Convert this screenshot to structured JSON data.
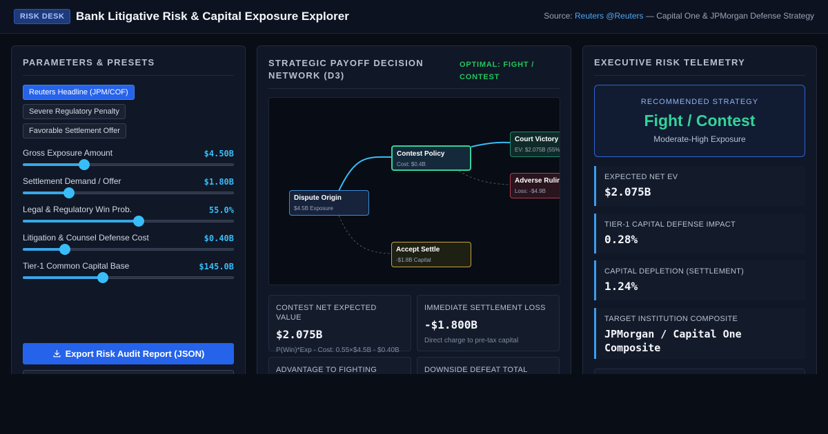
{
  "header": {
    "badge": "RISK DESK",
    "title": "Bank Litigative Risk & Capital Exposure Explorer",
    "source_prefix": "Source: ",
    "source_link": "Reuters @Reuters",
    "source_suffix": " — Capital One & JPMorgan Defense Strategy"
  },
  "left": {
    "title": "PARAMETERS & PRESETS",
    "presets": [
      {
        "label": "Reuters Headline (JPM/COF)",
        "active": true
      },
      {
        "label": "Severe Regulatory Penalty",
        "active": false
      },
      {
        "label": "Favorable Settlement Offer",
        "active": false
      }
    ],
    "params": [
      {
        "label": "Gross Exposure Amount",
        "value": "$4.50B",
        "level": 0.29
      },
      {
        "label": "Settlement Demand / Offer",
        "value": "$1.80B",
        "level": 0.22
      },
      {
        "label": "Legal & Regulatory Win Prob.",
        "value": "55.0%",
        "level": 0.55
      },
      {
        "label": "Litigation & Counsel Defense Cost",
        "value": "$0.40B",
        "level": 0.2
      },
      {
        "label": "Tier-1 Common Capital Base",
        "value": "$145.0B",
        "level": 0.38
      }
    ],
    "export_label": "Export Risk Audit Report (JSON)"
  },
  "middle": {
    "title_line1": "STRATEGIC PAYOFF DECISION",
    "title_line2": "NETWORK (D3)",
    "optimal_line1": "OPTIMAL: FIGHT /",
    "optimal_line2": "CONTEST",
    "nodes": {
      "origin": {
        "title": "Dispute Origin",
        "sub": "$4.5B Exposure"
      },
      "contest": {
        "title": "Contest Policy",
        "sub": "Cost: $0.4B"
      },
      "victory": {
        "title": "Court Victory",
        "sub": "EV: $2.075B (55%"
      },
      "adverse": {
        "title": "Adverse Rulin",
        "sub": "Loss: -$4.9B"
      },
      "settle": {
        "title": "Accept Settle",
        "sub": "-$1.8B Capital"
      }
    },
    "cards": [
      {
        "label": "CONTEST NET EXPECTED VALUE",
        "value": "$2.075B",
        "detail": "P(Win)*Exp - Cost: 0.55×$4.5B - $0.40B"
      },
      {
        "label": "IMMEDIATE SETTLEMENT LOSS",
        "value": "-$1.800B",
        "detail": "Direct charge to pre-tax capital"
      },
      {
        "label": "ADVANTAGE TO FIGHTING",
        "value": "",
        "detail": ""
      },
      {
        "label": "DOWNSIDE DEFEAT TOTAL",
        "value": "",
        "detail": ""
      }
    ]
  },
  "right": {
    "title": "EXECUTIVE RISK TELEMETRY",
    "rec_label": "RECOMMENDED STRATEGY",
    "rec_value": "Fight / Contest",
    "rec_sub": "Moderate-High Exposure",
    "metrics": [
      {
        "label": "EXPECTED NET EV",
        "value": "$2.075B"
      },
      {
        "label": "TIER-1 CAPITAL DEFENSE IMPACT",
        "value": "0.28%"
      },
      {
        "label": "CAPITAL DEPLETION (SETTLEMENT)",
        "value": "1.24%"
      },
      {
        "label": "TARGET INSTITUTION COMPOSITE",
        "value_line1": "JPMorgan / Capital One",
        "value_line2": "Composite"
      }
    ]
  },
  "colors": {
    "accent": "#2563eb",
    "positive": "#34d399",
    "negative": "#b23a4e",
    "settle": "#c9a53b",
    "value": "#38bdf8"
  }
}
